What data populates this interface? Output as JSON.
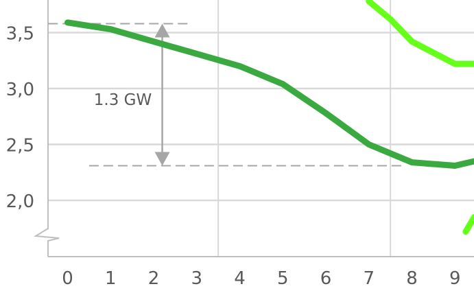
{
  "chart_data": {
    "type": "line",
    "title": "",
    "xlabel": "",
    "ylabel": "",
    "x_ticks": [
      "0",
      "1",
      "2",
      "3",
      "4",
      "5",
      "6",
      "7",
      "8",
      "9"
    ],
    "y_ticks": [
      "2,0",
      "2,5",
      "3,0",
      "3,5"
    ],
    "y_tick_values": [
      2.0,
      2.5,
      3.0,
      3.5
    ],
    "xlim": [
      -0.45,
      9.45
    ],
    "ylim": [
      1.5,
      3.75
    ],
    "y_axis_break": true,
    "grid": "horizontal major lines, vertical lines at x=3.5 and x=7.5",
    "legend": "none",
    "series": [
      {
        "color": "#3aaa40",
        "x": [
          0,
          1,
          2,
          3,
          4,
          5,
          6,
          7,
          8,
          9,
          9.45
        ],
        "y": [
          3.59,
          3.53,
          3.42,
          3.31,
          3.2,
          3.04,
          2.78,
          2.5,
          2.34,
          2.31,
          2.35
        ]
      },
      {
        "color": "#66ff1a",
        "x": [
          7,
          7.5,
          8,
          8.5,
          9,
          9.45
        ],
        "y": [
          3.78,
          3.62,
          3.42,
          3.32,
          3.22,
          3.22
        ]
      },
      {
        "color": "#66ff1a",
        "x": [
          9.25,
          9.45
        ],
        "y": [
          1.72,
          1.85
        ]
      }
    ],
    "annotations": [
      {
        "label": "1.3 GW",
        "from_y": 3.58,
        "to_y": 2.31
      }
    ],
    "colors": {
      "grid": "#d9d9d9",
      "axis": "#bfbfbf",
      "ticks_text": "#595959",
      "dashed_reference": "#a6a6a6",
      "arrow": "#a6a6a6"
    }
  }
}
